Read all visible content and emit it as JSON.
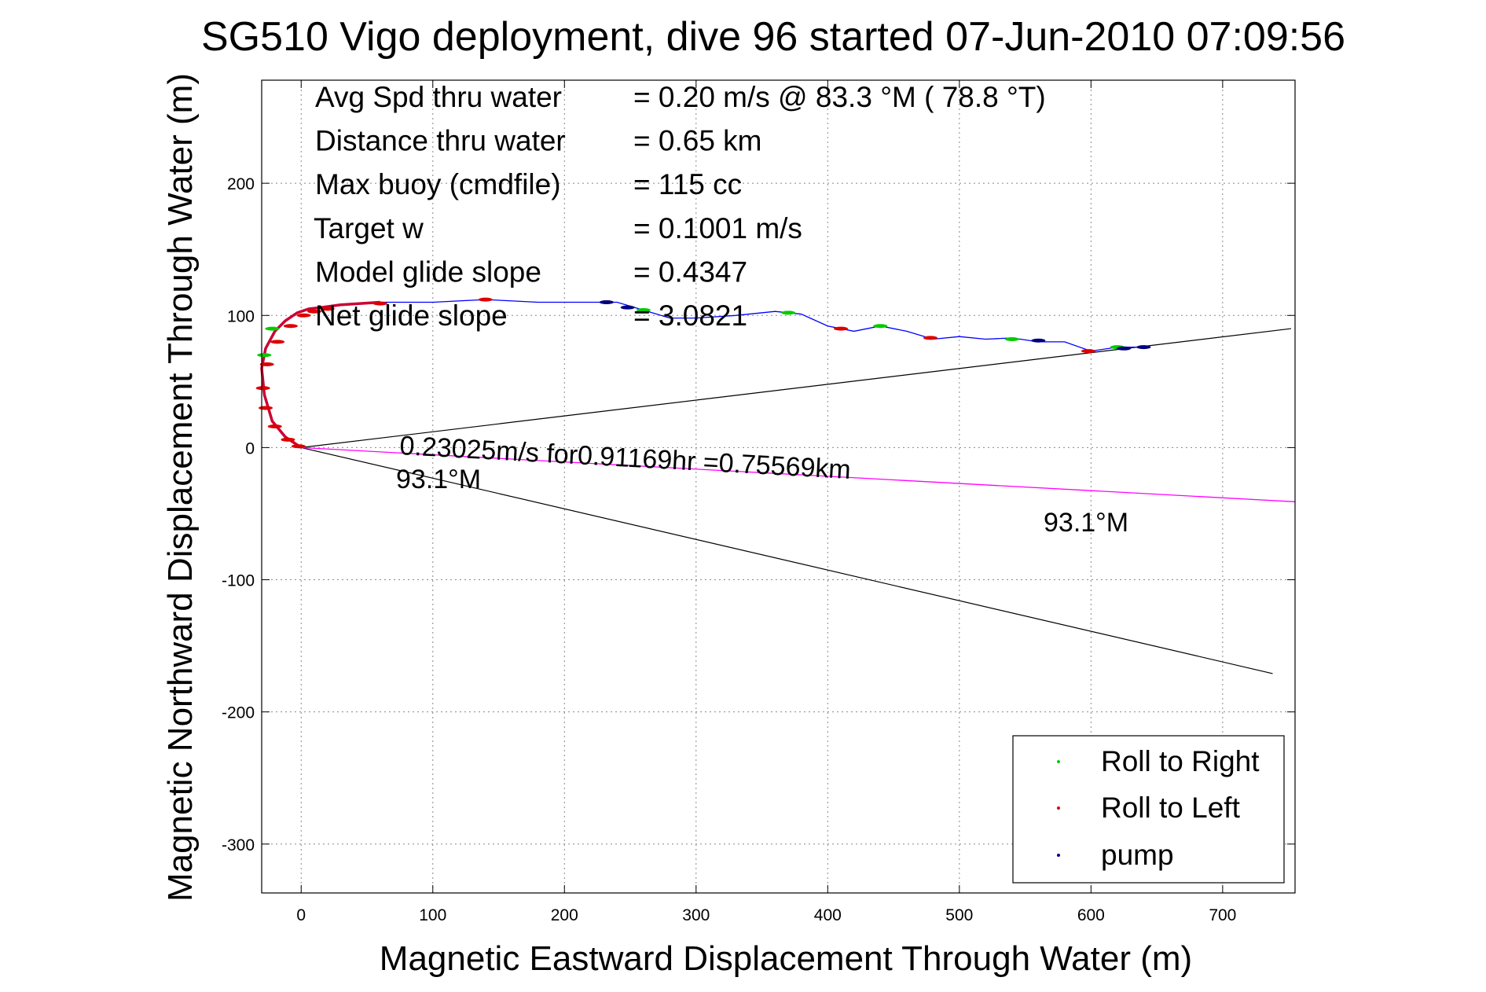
{
  "chart_data": {
    "type": "line",
    "title": "SG510 Vigo deployment, dive 96 started 07-Jun-2010 07:09:56",
    "xlabel": "Magnetic Eastward Displacement Through Water (m)",
    "ylabel": "Magnetic Northward Displacement Through Water (m)",
    "xlim": [
      -30,
      755
    ],
    "ylim": [
      -337,
      278
    ],
    "xticks": [
      0,
      100,
      200,
      300,
      400,
      500,
      600,
      700
    ],
    "yticks": [
      200,
      100,
      0,
      -100,
      -200,
      -300
    ],
    "grid": true,
    "colors": {
      "track": "#0000ff",
      "roll_right": "#00cc00",
      "roll_left": "#dd0000",
      "pump": "#000080",
      "current_line": "#ff00ff",
      "reference_lines": "#000000",
      "red_track": "#cc0033"
    },
    "info_lines": [
      {
        "label": "Avg Spd thru water",
        "value": "=  0.20 m/s @  83.3 °M ( 78.8 °T)"
      },
      {
        "label": "Distance thru water",
        "value": "=  0.65 km"
      },
      {
        "label": "Max buoy (cmdfile)",
        "value": "= 115 cc"
      },
      {
        "label": "Target w",
        "value": "= 0.1001 m/s"
      },
      {
        "label": "Model glide slope",
        "value": "= 0.4347"
      },
      {
        "label": "Net glide slope",
        "value": "= 3.0821"
      }
    ],
    "annotations": {
      "current": "0.23025m/s for0.91169hr =0.75569km",
      "heading_near": "93.1°M",
      "heading_far": "93.1°M"
    },
    "reference_lines": [
      {
        "x": [
          0,
          752
        ],
        "y": [
          0,
          90
        ]
      },
      {
        "x": [
          0,
          738
        ],
        "y": [
          0,
          -171
        ]
      }
    ],
    "current_line": {
      "x": [
        0,
        755
      ],
      "y": [
        0,
        -41
      ]
    },
    "series": [
      {
        "name": "track",
        "x": [
          0,
          -12,
          -22,
          -28,
          -30,
          -27,
          -20,
          -12,
          -3,
          6,
          15,
          30,
          60,
          100,
          140,
          180,
          220,
          240,
          260,
          280,
          300,
          330,
          360,
          380,
          400,
          420,
          440,
          460,
          480,
          500,
          520,
          540,
          560,
          580,
          600,
          620,
          645
        ],
        "y": [
          0,
          8,
          20,
          40,
          60,
          75,
          88,
          96,
          102,
          105,
          106,
          108,
          110,
          110,
          112,
          110,
          110,
          110,
          104,
          98,
          98,
          100,
          103,
          101,
          92,
          88,
          92,
          88,
          82,
          84,
          82,
          83,
          80,
          80,
          73,
          76,
          76
        ]
      },
      {
        "name": "Roll to Right",
        "x": [
          -28,
          -22,
          260,
          370,
          440,
          540,
          620
        ],
        "y": [
          70,
          90,
          104,
          102,
          92,
          82,
          76
        ]
      },
      {
        "name": "Roll to Left",
        "x": [
          -2,
          -10,
          -20,
          -27,
          -29,
          -26,
          -18,
          -8,
          2,
          10,
          20,
          60,
          140,
          232,
          410,
          478,
          598
        ],
        "y": [
          1,
          6,
          16,
          30,
          45,
          63,
          80,
          92,
          100,
          103,
          105,
          109,
          112,
          110,
          90,
          83,
          73
        ]
      },
      {
        "name": "pump",
        "x": [
          232,
          248,
          560,
          625,
          640
        ],
        "y": [
          110,
          106,
          81,
          75,
          76
        ]
      }
    ],
    "legend": {
      "position": "bottom-right",
      "entries": [
        "Roll to Right",
        "Roll to Left",
        "pump"
      ]
    }
  }
}
